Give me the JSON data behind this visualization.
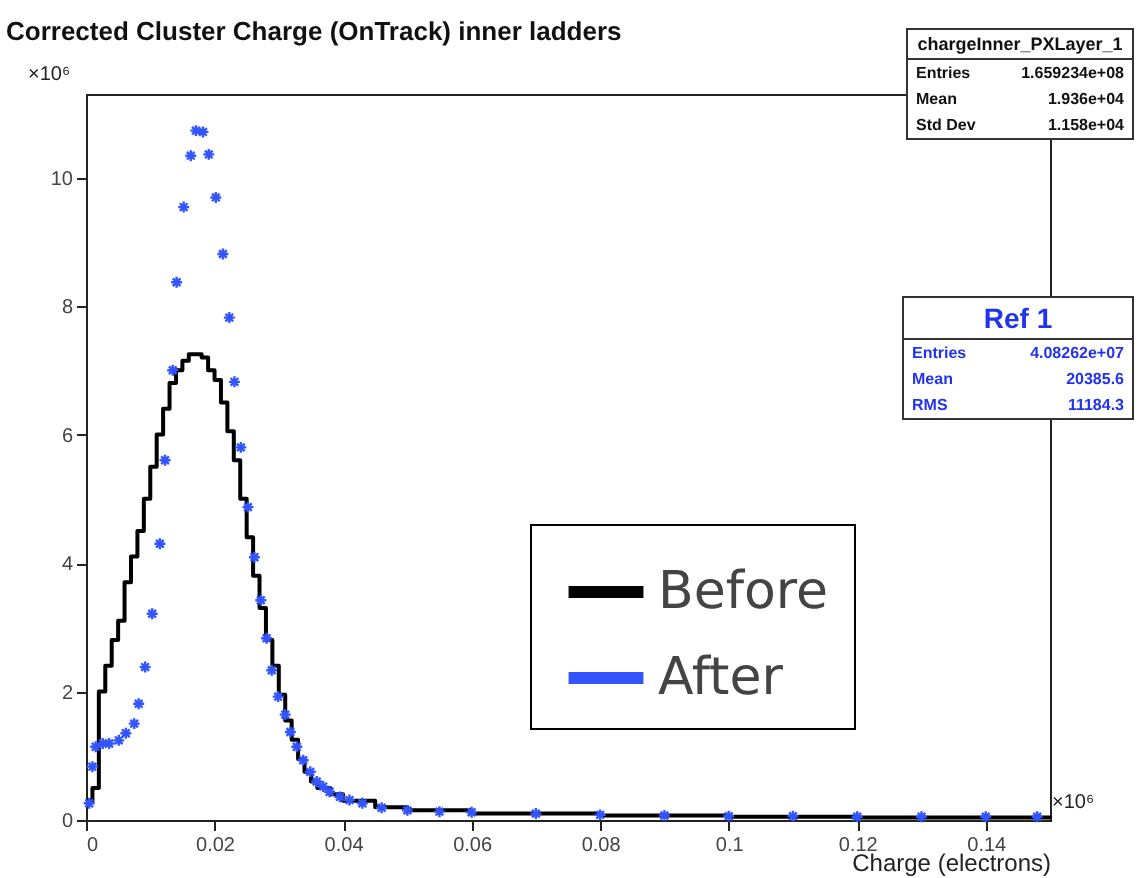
{
  "chart_data": {
    "type": "step",
    "title": "Corrected Cluster Charge (OnTrack) inner ladders",
    "xlabel": "Charge (electrons)",
    "xlim": [
      0,
      0.15
    ],
    "xticks": [
      0,
      0.02,
      0.04,
      0.06,
      0.08,
      0.1,
      0.12,
      0.14
    ],
    "ylim": [
      0,
      11.3
    ],
    "yticks": [
      0,
      2,
      4,
      6,
      8,
      10
    ],
    "grid": false,
    "legend": "right",
    "annotations": [
      "×10⁶",
      "×10⁶",
      "chargeInner_PXLayer_1",
      "Entries",
      "1.659234e+08",
      "Mean",
      "1.936e+04",
      "Std Dev",
      "1.158e+04",
      "Ref 1",
      "Entries",
      "4.08262e+07",
      "Mean",
      "20385.6",
      "RMS",
      "11184.3"
    ],
    "series": [
      {
        "name": "Before",
        "color": "#000000",
        "marker": "none",
        "x": [
          0,
          0.001,
          0.002,
          0.003,
          0.004,
          0.005,
          0.006,
          0.007,
          0.008,
          0.009,
          0.01,
          0.011,
          0.012,
          0.013,
          0.014,
          0.015,
          0.016,
          0.017,
          0.018,
          0.019,
          0.02,
          0.021,
          0.022,
          0.023,
          0.024,
          0.025,
          0.026,
          0.027,
          0.028,
          0.029,
          0.03,
          0.031,
          0.032,
          0.033,
          0.034,
          0.035,
          0.036,
          0.038,
          0.04,
          0.045,
          0.05,
          0.06,
          0.08,
          0.1,
          0.12,
          0.15
        ],
        "values": [
          0.3,
          0.5,
          2.0,
          2.4,
          2.8,
          3.1,
          3.7,
          4.1,
          4.5,
          5.0,
          5.5,
          6.0,
          6.4,
          6.8,
          7.0,
          7.15,
          7.25,
          7.25,
          7.2,
          7.0,
          6.85,
          6.5,
          6.05,
          5.6,
          5.0,
          4.4,
          3.8,
          3.3,
          2.8,
          2.4,
          1.95,
          1.55,
          1.25,
          0.95,
          0.75,
          0.6,
          0.5,
          0.4,
          0.3,
          0.2,
          0.15,
          0.1,
          0.07,
          0.05,
          0.04,
          0.03
        ]
      },
      {
        "name": "After",
        "color": "#3355ff",
        "type": "scatter",
        "marker": "cross",
        "x": [
          0.0005,
          0.001,
          0.0015,
          0.0026,
          0.0036,
          0.0051,
          0.0062,
          0.0075,
          0.0082,
          0.0092,
          0.0103,
          0.0115,
          0.0123,
          0.0135,
          0.0141,
          0.0152,
          0.0163,
          0.0171,
          0.0182,
          0.0191,
          0.0202,
          0.0213,
          0.0223,
          0.0231,
          0.0241,
          0.0252,
          0.0262,
          0.0272,
          0.0281,
          0.0289,
          0.0299,
          0.031,
          0.0318,
          0.0328,
          0.0338,
          0.0349,
          0.0359,
          0.0369,
          0.0379,
          0.0395,
          0.041,
          0.043,
          0.046,
          0.05,
          0.055,
          0.06,
          0.07,
          0.08,
          0.09,
          0.1,
          0.11,
          0.12,
          0.13,
          0.14,
          0.148
        ],
        "values": [
          0.26,
          0.83,
          1.14,
          1.19,
          1.19,
          1.24,
          1.35,
          1.5,
          1.81,
          2.38,
          3.21,
          4.3,
          5.6,
          7.0,
          8.37,
          9.54,
          10.34,
          10.73,
          10.71,
          10.36,
          9.69,
          8.81,
          7.82,
          6.82,
          5.8,
          4.87,
          4.09,
          3.42,
          2.83,
          2.33,
          1.92,
          1.64,
          1.37,
          1.14,
          0.93,
          0.75,
          0.6,
          0.52,
          0.44,
          0.36,
          0.31,
          0.26,
          0.19,
          0.15,
          0.13,
          0.12,
          0.1,
          0.08,
          0.07,
          0.06,
          0.06,
          0.05,
          0.05,
          0.05,
          0.05
        ]
      }
    ]
  }
}
